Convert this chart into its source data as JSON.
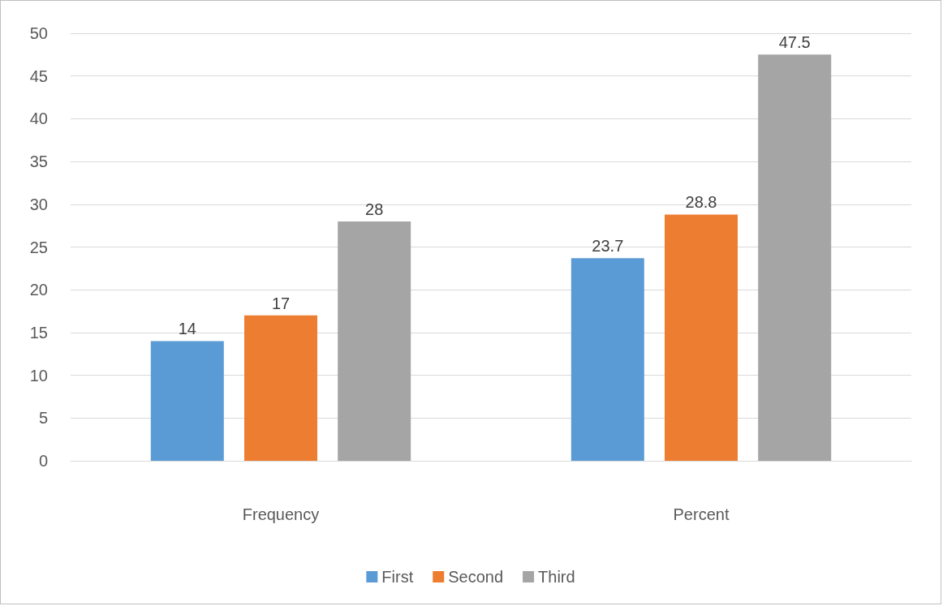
{
  "chart_data": {
    "type": "bar",
    "categories": [
      "Frequency",
      "Percent"
    ],
    "series": [
      {
        "name": "First",
        "color": "#5b9bd5",
        "values": [
          14,
          23.7
        ]
      },
      {
        "name": "Second",
        "color": "#ed7d31",
        "values": [
          17,
          28.8
        ]
      },
      {
        "name": "Third",
        "color": "#a5a5a5",
        "values": [
          28,
          47.5
        ]
      }
    ],
    "ylim": [
      0,
      50
    ],
    "yticks": [
      0,
      5,
      10,
      15,
      20,
      25,
      30,
      35,
      40,
      45,
      50
    ],
    "grid": "y",
    "legend": "bottom",
    "data_labels": true
  }
}
